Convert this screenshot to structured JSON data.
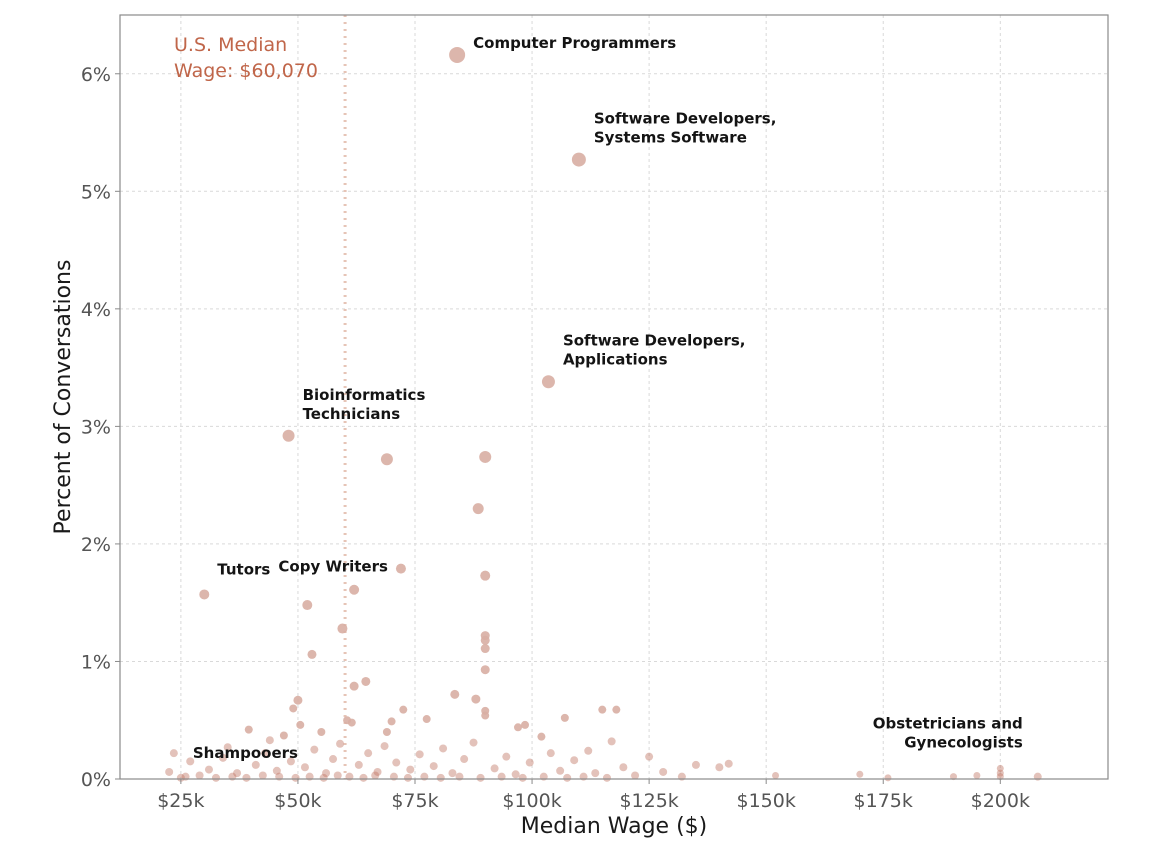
{
  "chart_data": {
    "type": "scatter",
    "title": "",
    "xlabel": "Median Wage ($)",
    "ylabel": "Percent of Conversations",
    "xlim": [
      12000,
      223000
    ],
    "ylim": [
      0,
      6.5
    ],
    "x_ticks": [
      25000,
      50000,
      75000,
      100000,
      125000,
      150000,
      175000,
      200000
    ],
    "x_tick_labels": [
      "$25k",
      "$50k",
      "$75k",
      "$100k",
      "$125k",
      "$150k",
      "$175k",
      "$200k"
    ],
    "y_ticks": [
      0,
      1,
      2,
      3,
      4,
      5,
      6
    ],
    "y_tick_labels": [
      "0%",
      "1%",
      "2%",
      "3%",
      "4%",
      "5%",
      "6%"
    ],
    "grid": true,
    "colors": {
      "high_point": "#d8aea3",
      "low_point": "#c27766",
      "median_line": "#e6c4b6",
      "median_text": "#c0664a"
    },
    "median_line": {
      "x": 60070,
      "label_line1": "U.S. Median",
      "label_line2": "Wage: $60,070"
    },
    "points": [
      {
        "x": 84000,
        "y": 6.16,
        "size": 8,
        "label": "Computer Programmers",
        "label_lines": [
          "Computer Programmers"
        ],
        "label_pos": "right"
      },
      {
        "x": 110000,
        "y": 5.27,
        "size": 7,
        "label": "Software Developers, Systems Software",
        "label_lines": [
          "Software Developers,",
          "Systems Software"
        ],
        "label_pos": "above-right"
      },
      {
        "x": 103500,
        "y": 3.38,
        "size": 6.5,
        "label": "Software Developers, Applications",
        "label_lines": [
          "Software Developers,",
          "Applications"
        ],
        "label_pos": "above-right"
      },
      {
        "x": 48000,
        "y": 2.92,
        "size": 6,
        "label": "Bioinformatics Technicians",
        "label_lines": [
          "Bioinformatics",
          "Technicians"
        ],
        "label_pos": "above-right"
      },
      {
        "x": 69000,
        "y": 2.72,
        "size": 6
      },
      {
        "x": 90000,
        "y": 2.74,
        "size": 6
      },
      {
        "x": 88500,
        "y": 2.3,
        "size": 5.5
      },
      {
        "x": 30000,
        "y": 1.57,
        "size": 5,
        "label": "Tutors",
        "label_lines": [
          "Tutors"
        ],
        "label_pos": "above-right"
      },
      {
        "x": 72000,
        "y": 1.79,
        "size": 5,
        "label": "Copy Writers",
        "label_lines": [
          "Copy Writers"
        ],
        "label_pos": "left"
      },
      {
        "x": 90000,
        "y": 1.73,
        "size": 5
      },
      {
        "x": 52000,
        "y": 1.48,
        "size": 5
      },
      {
        "x": 62000,
        "y": 1.61,
        "size": 5
      },
      {
        "x": 59500,
        "y": 1.28,
        "size": 5
      },
      {
        "x": 90000,
        "y": 1.22,
        "size": 4.5
      },
      {
        "x": 90000,
        "y": 1.18,
        "size": 4.5
      },
      {
        "x": 90000,
        "y": 1.11,
        "size": 4.5
      },
      {
        "x": 53000,
        "y": 1.06,
        "size": 4.5
      },
      {
        "x": 90000,
        "y": 0.93,
        "size": 4.5
      },
      {
        "x": 64500,
        "y": 0.83,
        "size": 4.5
      },
      {
        "x": 62000,
        "y": 0.79,
        "size": 4.5
      },
      {
        "x": 83500,
        "y": 0.72,
        "size": 4.5
      },
      {
        "x": 88000,
        "y": 0.68,
        "size": 4.5
      },
      {
        "x": 50000,
        "y": 0.67,
        "size": 4.5
      },
      {
        "x": 49000,
        "y": 0.6,
        "size": 4
      },
      {
        "x": 115000,
        "y": 0.59,
        "size": 4
      },
      {
        "x": 118000,
        "y": 0.59,
        "size": 4
      },
      {
        "x": 72500,
        "y": 0.59,
        "size": 4
      },
      {
        "x": 90000,
        "y": 0.58,
        "size": 4
      },
      {
        "x": 90000,
        "y": 0.54,
        "size": 4
      },
      {
        "x": 107000,
        "y": 0.52,
        "size": 4
      },
      {
        "x": 77500,
        "y": 0.51,
        "size": 4
      },
      {
        "x": 61500,
        "y": 0.48,
        "size": 4
      },
      {
        "x": 60500,
        "y": 0.5,
        "size": 4
      },
      {
        "x": 70000,
        "y": 0.49,
        "size": 4
      },
      {
        "x": 50500,
        "y": 0.46,
        "size": 4
      },
      {
        "x": 98500,
        "y": 0.46,
        "size": 4
      },
      {
        "x": 97000,
        "y": 0.44,
        "size": 4
      },
      {
        "x": 39500,
        "y": 0.42,
        "size": 4
      },
      {
        "x": 55000,
        "y": 0.4,
        "size": 4
      },
      {
        "x": 69000,
        "y": 0.4,
        "size": 4
      },
      {
        "x": 47000,
        "y": 0.37,
        "size": 4
      },
      {
        "x": 102000,
        "y": 0.36,
        "size": 4
      },
      {
        "x": 117000,
        "y": 0.32,
        "size": 4
      },
      {
        "x": 44000,
        "y": 0.33,
        "size": 4
      },
      {
        "x": 35000,
        "y": 0.27,
        "size": 4
      },
      {
        "x": 23500,
        "y": 0.22,
        "size": 4
      },
      {
        "x": 112000,
        "y": 0.24,
        "size": 4
      },
      {
        "x": 125000,
        "y": 0.19,
        "size": 4
      },
      {
        "x": 135000,
        "y": 0.12,
        "size": 4
      },
      {
        "x": 142000,
        "y": 0.13,
        "size": 4
      },
      {
        "x": 140000,
        "y": 0.1,
        "size": 4
      },
      {
        "x": 152000,
        "y": 0.03,
        "size": 3.5
      },
      {
        "x": 170000,
        "y": 0.04,
        "size": 3.5
      },
      {
        "x": 176000,
        "y": 0.01,
        "size": 3.5
      },
      {
        "x": 190000,
        "y": 0.02,
        "size": 3.5
      },
      {
        "x": 195000,
        "y": 0.03,
        "size": 3.5
      },
      {
        "x": 200000,
        "y": 0.09,
        "size": 3.5
      },
      {
        "x": 200000,
        "y": 0.05,
        "size": 3.5
      },
      {
        "x": 200000,
        "y": 0.02,
        "size": 3.5
      },
      {
        "x": 208000,
        "y": 0.02,
        "size": 4,
        "label": "Obstetricians and Gynecologists",
        "label_lines": [
          "Obstetricians and",
          "Gynecologists"
        ],
        "label_pos": "above-left"
      },
      {
        "x": 25000,
        "y": 0.01,
        "size": 4,
        "label": "Shampooers",
        "label_lines": [
          "Shampooers"
        ],
        "label_pos": "above-right"
      },
      {
        "x": 22500,
        "y": 0.06,
        "size": 4
      },
      {
        "x": 27000,
        "y": 0.15,
        "size": 4
      },
      {
        "x": 31000,
        "y": 0.08,
        "size": 4
      },
      {
        "x": 34000,
        "y": 0.18,
        "size": 4
      },
      {
        "x": 37000,
        "y": 0.05,
        "size": 4
      },
      {
        "x": 41000,
        "y": 0.12,
        "size": 4
      },
      {
        "x": 43000,
        "y": 0.22,
        "size": 4
      },
      {
        "x": 45500,
        "y": 0.07,
        "size": 4
      },
      {
        "x": 48500,
        "y": 0.15,
        "size": 4
      },
      {
        "x": 51500,
        "y": 0.1,
        "size": 4
      },
      {
        "x": 53500,
        "y": 0.25,
        "size": 4
      },
      {
        "x": 56000,
        "y": 0.05,
        "size": 4
      },
      {
        "x": 57500,
        "y": 0.17,
        "size": 4
      },
      {
        "x": 59000,
        "y": 0.3,
        "size": 4
      },
      {
        "x": 63000,
        "y": 0.12,
        "size": 4
      },
      {
        "x": 65000,
        "y": 0.22,
        "size": 4
      },
      {
        "x": 67000,
        "y": 0.06,
        "size": 4
      },
      {
        "x": 68500,
        "y": 0.28,
        "size": 4
      },
      {
        "x": 71000,
        "y": 0.14,
        "size": 4
      },
      {
        "x": 74000,
        "y": 0.08,
        "size": 4
      },
      {
        "x": 76000,
        "y": 0.21,
        "size": 4
      },
      {
        "x": 79000,
        "y": 0.11,
        "size": 4
      },
      {
        "x": 81000,
        "y": 0.26,
        "size": 4
      },
      {
        "x": 83000,
        "y": 0.05,
        "size": 4
      },
      {
        "x": 85500,
        "y": 0.17,
        "size": 4
      },
      {
        "x": 87500,
        "y": 0.31,
        "size": 4
      },
      {
        "x": 92000,
        "y": 0.09,
        "size": 4
      },
      {
        "x": 94500,
        "y": 0.19,
        "size": 4
      },
      {
        "x": 96500,
        "y": 0.04,
        "size": 4
      },
      {
        "x": 99500,
        "y": 0.14,
        "size": 4
      },
      {
        "x": 104000,
        "y": 0.22,
        "size": 4
      },
      {
        "x": 106000,
        "y": 0.07,
        "size": 4
      },
      {
        "x": 109000,
        "y": 0.16,
        "size": 4
      },
      {
        "x": 113500,
        "y": 0.05,
        "size": 4
      },
      {
        "x": 119500,
        "y": 0.1,
        "size": 4
      },
      {
        "x": 122000,
        "y": 0.03,
        "size": 4
      },
      {
        "x": 128000,
        "y": 0.06,
        "size": 4
      },
      {
        "x": 132000,
        "y": 0.02,
        "size": 4
      },
      {
        "x": 26000,
        "y": 0.02,
        "size": 4
      },
      {
        "x": 29000,
        "y": 0.03,
        "size": 4
      },
      {
        "x": 32500,
        "y": 0.01,
        "size": 4
      },
      {
        "x": 36000,
        "y": 0.02,
        "size": 4
      },
      {
        "x": 39000,
        "y": 0.01,
        "size": 4
      },
      {
        "x": 42500,
        "y": 0.03,
        "size": 4
      },
      {
        "x": 46000,
        "y": 0.02,
        "size": 4
      },
      {
        "x": 49500,
        "y": 0.01,
        "size": 4
      },
      {
        "x": 52500,
        "y": 0.02,
        "size": 4
      },
      {
        "x": 55500,
        "y": 0.01,
        "size": 4
      },
      {
        "x": 58500,
        "y": 0.03,
        "size": 4
      },
      {
        "x": 61000,
        "y": 0.02,
        "size": 4
      },
      {
        "x": 64000,
        "y": 0.01,
        "size": 4
      },
      {
        "x": 66500,
        "y": 0.03,
        "size": 4
      },
      {
        "x": 70500,
        "y": 0.02,
        "size": 4
      },
      {
        "x": 73500,
        "y": 0.01,
        "size": 4
      },
      {
        "x": 77000,
        "y": 0.02,
        "size": 4
      },
      {
        "x": 80500,
        "y": 0.01,
        "size": 4
      },
      {
        "x": 84500,
        "y": 0.02,
        "size": 4
      },
      {
        "x": 89000,
        "y": 0.01,
        "size": 4
      },
      {
        "x": 93500,
        "y": 0.02,
        "size": 4
      },
      {
        "x": 98000,
        "y": 0.01,
        "size": 4
      },
      {
        "x": 102500,
        "y": 0.02,
        "size": 4
      },
      {
        "x": 107500,
        "y": 0.01,
        "size": 4
      },
      {
        "x": 111000,
        "y": 0.02,
        "size": 4
      },
      {
        "x": 116000,
        "y": 0.01,
        "size": 4
      }
    ]
  }
}
